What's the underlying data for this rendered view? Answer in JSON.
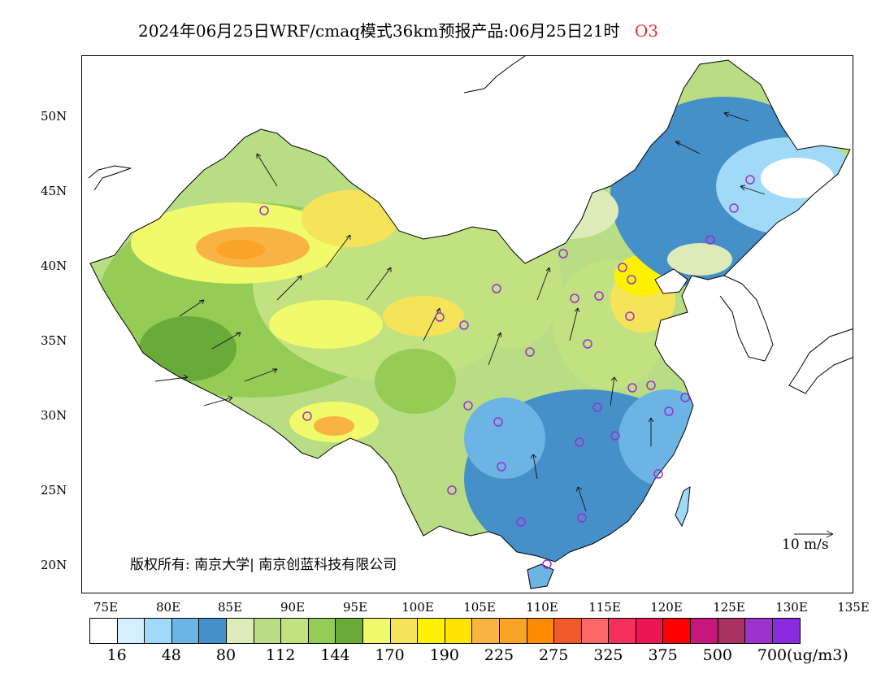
{
  "title": {
    "text": "2024年06月25日WRF/cmaq模式36km预报产品:06月25日21时",
    "pollutant": "O3"
  },
  "map": {
    "lat_ticks": [
      "50N",
      "45N",
      "40N",
      "35N",
      "30N",
      "25N",
      "20N"
    ],
    "lon_ticks": [
      "75E",
      "80E",
      "85E",
      "90E",
      "95E",
      "100E",
      "105E",
      "110E",
      "115E",
      "120E",
      "125E",
      "130E",
      "135E"
    ],
    "copyright": "版权所有: 南京大学| 南京创蓝科技有限公司",
    "wind_reference": "10 m/s",
    "colors": {
      "ocean": "#ffffff",
      "coast": "#000000",
      "station_marker": "#9b2fd6"
    }
  },
  "legend": {
    "colors": [
      "#ffffff",
      "#d6efff",
      "#a0daf8",
      "#6cb4e4",
      "#4590c8",
      "#dcebb8",
      "#b9dd84",
      "#c2e281",
      "#94cc55",
      "#6aaa38",
      "#f0fa6a",
      "#f5e45a",
      "#fff200",
      "#ffe400",
      "#f7b443",
      "#f9a426",
      "#ff8c00",
      "#f15a2a",
      "#ff6868",
      "#f5305a",
      "#ee1652",
      "#ff0000",
      "#c8177a",
      "#a93160",
      "#9b33cc",
      "#8a2be2"
    ],
    "labels": [
      "16",
      "48",
      "80",
      "112",
      "144",
      "170",
      "190",
      "225",
      "275",
      "325",
      "375",
      "500",
      "700"
    ],
    "unit": "(ug/m3)"
  }
}
